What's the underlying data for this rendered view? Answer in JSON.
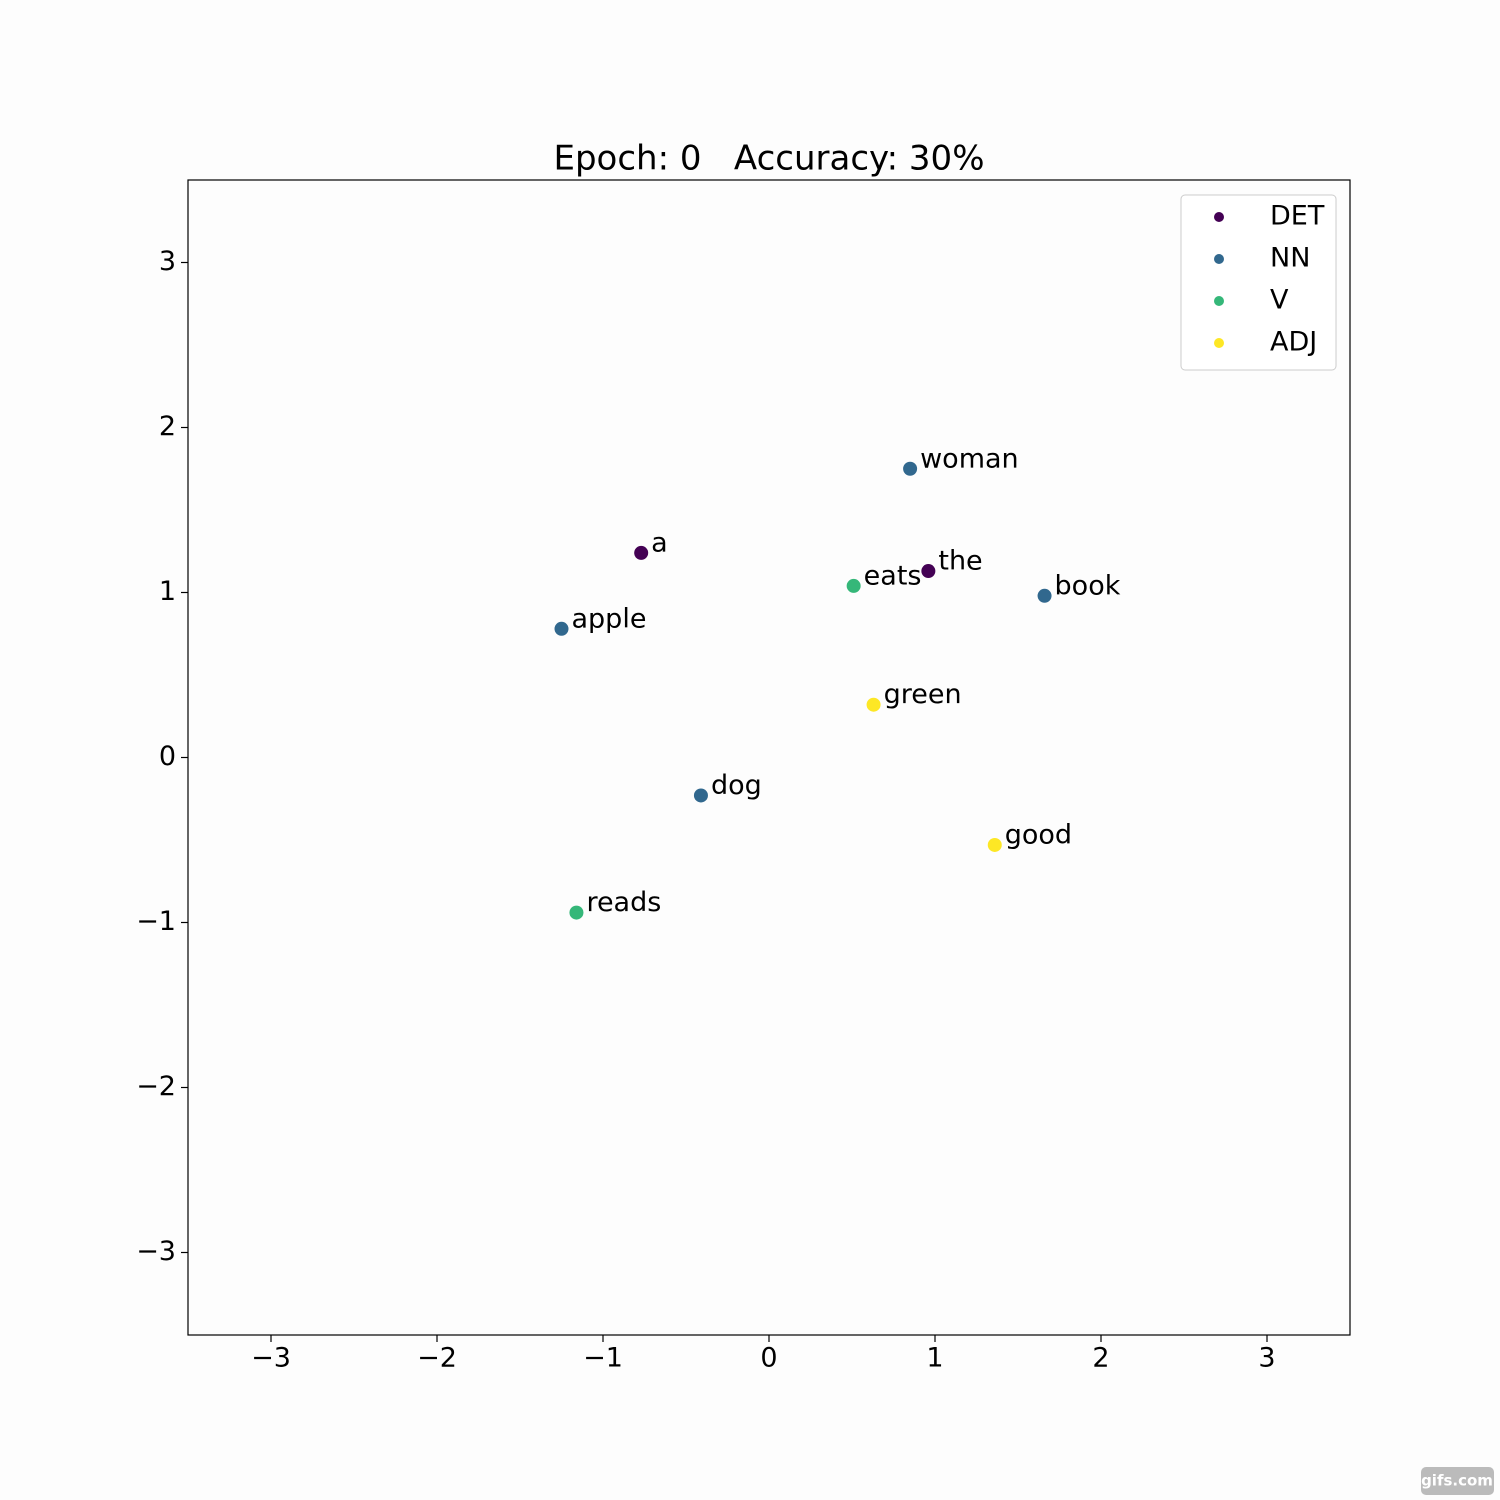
{
  "chart_data": {
    "type": "scatter",
    "title": "Epoch: 0   Accuracy: 30%",
    "xlim": [
      -3.5,
      3.5
    ],
    "ylim": [
      -3.5,
      3.5
    ],
    "xticks": [
      {
        "value": -3,
        "label": "−3"
      },
      {
        "value": -2,
        "label": "−2"
      },
      {
        "value": -1,
        "label": "−1"
      },
      0,
      1,
      2,
      3
    ],
    "yticks": [
      {
        "value": -3,
        "label": "−3"
      },
      {
        "value": -2,
        "label": "−2"
      },
      {
        "value": -1,
        "label": "−1"
      },
      0,
      1,
      2,
      3
    ],
    "legend": "upper right",
    "series": [
      {
        "name": "DET",
        "color": "#440154",
        "x": [
          -0.77,
          0.96
        ],
        "y": [
          1.24,
          1.13
        ],
        "labels": [
          "a",
          "the"
        ]
      },
      {
        "name": "NN",
        "color": "#31688e",
        "x": [
          0.85,
          1.66,
          -1.25,
          -0.41
        ],
        "y": [
          1.75,
          0.98,
          0.78,
          -0.23
        ],
        "labels": [
          "woman",
          "book",
          "apple",
          "dog"
        ]
      },
      {
        "name": "V",
        "color": "#35b779",
        "x": [
          0.51,
          -1.16
        ],
        "y": [
          1.04,
          -0.94
        ],
        "labels": [
          "eats",
          "reads"
        ]
      },
      {
        "name": "ADJ",
        "color": "#fde725",
        "x": [
          0.63,
          1.36
        ],
        "y": [
          0.32,
          -0.53
        ],
        "labels": [
          "green",
          "good"
        ]
      }
    ],
    "watermark": "gifs.com"
  }
}
